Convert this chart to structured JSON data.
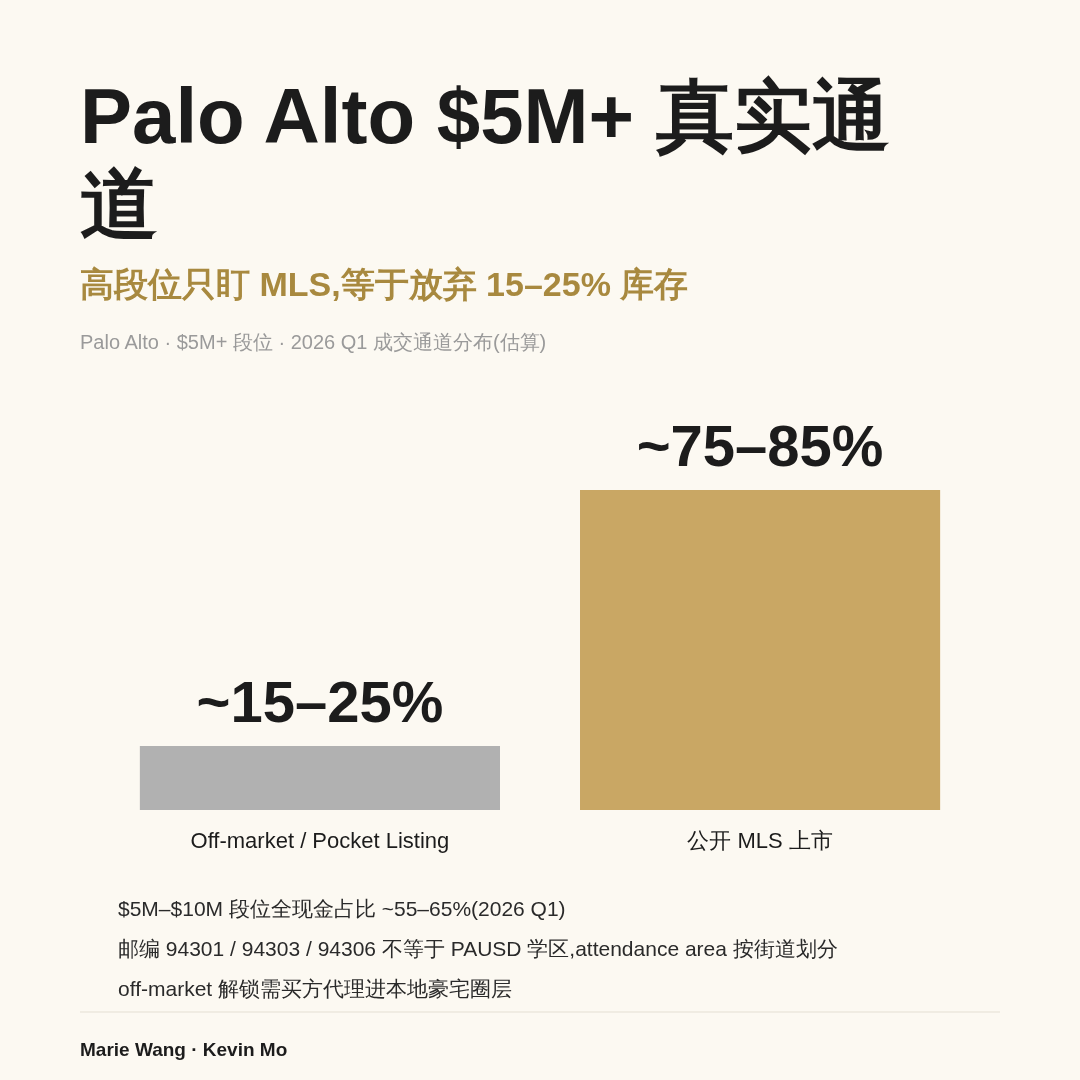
{
  "chart_data": {
    "type": "bar",
    "title": "Palo Alto $5M+ 真实通道",
    "subtitle": "高段位只盯 MLS,等于放弃 15–25% 库存",
    "categories": [
      "Off-market / Pocket Listing",
      "公开 MLS 上市"
    ],
    "values": [
      15,
      75
    ],
    "colors": [
      "#b1b1b1",
      "#c9a764"
    ],
    "tick_labels": "x",
    "value_labels": [
      "~15–25%",
      "~75–85%"
    ],
    "annotations": [
      "Palo Alto · $5M+ 段位 · 2026 Q1 成交通道分布(估算)",
      "$5M–$10M 段位全现金占比 ~55–65%(2026 Q1)",
      "邮编 94301 / 94303 / 94306 不等于 PAUSD 学区,attendance area 按街道划分",
      "off-market 解锁需买方代理进本地豪宅圈层",
      "Marie Wang · Kevin Mo"
    ]
  }
}
